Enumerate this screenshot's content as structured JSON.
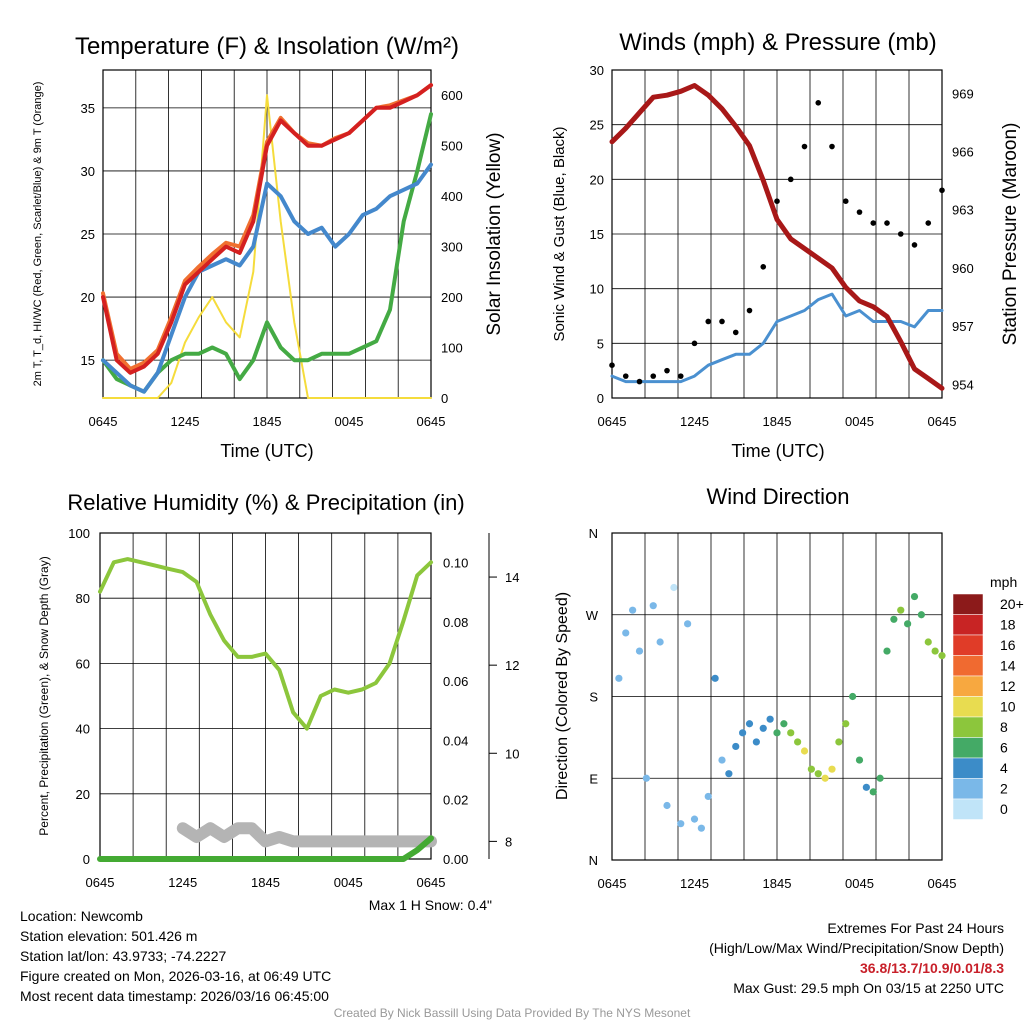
{
  "colors": {
    "temp_red": "#d42020",
    "temp_orange": "#f07030",
    "dew_green": "#44aa44",
    "chill_blue": "#4488cc",
    "solar_yellow": "#f5dc3c",
    "wind_blue": "#4a90d0",
    "gust_black": "#000000",
    "pressure_maroon": "#a81818",
    "rh_green": "#8cc63c",
    "precip_green": "#44aa33",
    "snow_gray": "#b4b4b4",
    "extreme_red": "#c8202a"
  },
  "chart_data": [
    {
      "type": "line",
      "title": "Temperature (F) & Insolation (W/m²)",
      "xlabel": "Time (UTC)",
      "ylabel": "2m T, T_d, HI/WC (Red, Green, Scarlet/Blue) & 9m T (Orange)",
      "y2label": "Solar Insolation (Yellow)",
      "xticks": [
        "0645",
        "1245",
        "1845",
        "0045",
        "0645"
      ],
      "ylim": [
        12,
        38
      ],
      "yticks": [
        15,
        20,
        25,
        30,
        35
      ],
      "y2lim": [
        0,
        650
      ],
      "y2ticks": [
        0,
        100,
        200,
        300,
        400,
        500,
        600
      ],
      "x": [
        0,
        1,
        2,
        3,
        4,
        5,
        6,
        7,
        8,
        9,
        10,
        11,
        12,
        13,
        14,
        15,
        16,
        17,
        18,
        19,
        20,
        21,
        22,
        23,
        24
      ],
      "series": [
        {
          "name": "2m T",
          "axis": "left",
          "values": [
            20,
            15,
            14,
            14.5,
            15.5,
            18,
            21,
            22,
            23,
            24,
            23.5,
            26,
            32,
            34,
            33,
            32,
            32,
            32.5,
            33,
            34,
            35,
            35,
            35.5,
            36,
            36.8
          ]
        },
        {
          "name": "9m T",
          "axis": "left",
          "values": [
            20.3,
            15.5,
            14.3,
            14.8,
            15.8,
            18.4,
            21.3,
            22.4,
            23.4,
            24.3,
            24,
            26.5,
            32.3,
            34.2,
            33,
            32.2,
            32,
            32.6,
            33,
            34,
            35,
            35.2,
            35.6,
            36,
            36.8
          ]
        },
        {
          "name": "HI/WC",
          "axis": "left",
          "values": [
            15,
            14,
            13,
            12.5,
            14,
            17,
            20,
            22,
            22.5,
            23,
            22.5,
            24,
            29,
            28,
            26,
            25,
            25.5,
            24,
            25,
            26.5,
            27,
            28,
            28.5,
            29,
            30.5
          ]
        },
        {
          "name": "Dew point",
          "axis": "left",
          "values": [
            15,
            13.5,
            13,
            12.5,
            14,
            15,
            15.5,
            15.5,
            16,
            15.5,
            13.5,
            15,
            18,
            16,
            15,
            15,
            15.5,
            15.5,
            15.5,
            16,
            16.5,
            19,
            26,
            30,
            34.5
          ]
        },
        {
          "name": "Solar",
          "axis": "right",
          "values": [
            0,
            0,
            0,
            0,
            0,
            30,
            110,
            160,
            200,
            150,
            120,
            250,
            600,
            350,
            150,
            0,
            0,
            0,
            0,
            0,
            0,
            0,
            0,
            0,
            0
          ]
        }
      ]
    },
    {
      "type": "line",
      "title": "Winds (mph) & Pressure (mb)",
      "xlabel": "Time (UTC)",
      "ylabel": "Sonic Wind & Gust (Blue, Black)",
      "y2label": "Station Pressure (Maroon)",
      "xticks": [
        "0645",
        "1245",
        "1845",
        "0045",
        "0645"
      ],
      "ylim": [
        0,
        30
      ],
      "yticks": [
        0,
        5,
        10,
        15,
        20,
        25,
        30
      ],
      "y2lim": [
        953.3,
        970.2
      ],
      "y2ticks": [
        954,
        957,
        960,
        963,
        966,
        969
      ],
      "x": [
        0,
        1,
        2,
        3,
        4,
        5,
        6,
        7,
        8,
        9,
        10,
        11,
        12,
        13,
        14,
        15,
        16,
        17,
        18,
        19,
        20,
        21,
        22,
        23,
        24
      ],
      "series": [
        {
          "name": "Sonic wind",
          "axis": "left",
          "values": [
            2,
            1.5,
            1.5,
            1.5,
            1.5,
            1.5,
            2,
            3,
            3.5,
            4,
            4,
            5,
            7,
            7.5,
            8,
            9,
            9.5,
            7.5,
            8,
            7,
            7,
            7,
            6.5,
            8,
            8
          ]
        },
        {
          "name": "Gust",
          "axis": "left",
          "values": [
            3,
            2,
            1.5,
            2,
            2.5,
            2,
            5,
            7,
            7,
            6,
            8,
            12,
            18,
            20,
            23,
            27,
            23,
            18,
            17,
            16,
            16,
            15,
            14,
            16,
            19
          ]
        },
        {
          "name": "Pressure",
          "axis": "right",
          "values": [
            966.5,
            967.2,
            968,
            968.8,
            968.9,
            969.1,
            969.4,
            968.9,
            968.2,
            967.3,
            966.3,
            964.5,
            962.5,
            961.5,
            961,
            960.5,
            960,
            959,
            958.3,
            958,
            957.5,
            956.2,
            954.8,
            954.3,
            953.8
          ]
        }
      ]
    },
    {
      "type": "line",
      "title": "Relative Humidity (%) & Precipitation (in)",
      "ylabel": "Percent, Precipitation (Green), & Snow Depth (Gray)",
      "xticks": [
        "0645",
        "1245",
        "1845",
        "0045",
        "0645"
      ],
      "ylim": [
        0,
        100
      ],
      "yticks": [
        0,
        20,
        40,
        60,
        80,
        100
      ],
      "y2lim": [
        0,
        0.11
      ],
      "y2ticks": [
        "0.00",
        "0.02",
        "0.04",
        "0.06",
        "0.08",
        "0.10"
      ],
      "y3lim": [
        7.6,
        15
      ],
      "y3ticks": [
        8,
        10,
        12,
        14
      ],
      "x": [
        0,
        1,
        2,
        3,
        4,
        5,
        6,
        7,
        8,
        9,
        10,
        11,
        12,
        13,
        14,
        15,
        16,
        17,
        18,
        19,
        20,
        21,
        22,
        23,
        24
      ],
      "series": [
        {
          "name": "Relative humidity",
          "axis": "left",
          "values": [
            82,
            91,
            92,
            91,
            90,
            89,
            88,
            85,
            75,
            67,
            62,
            62,
            63,
            58,
            45,
            40,
            50,
            52,
            51,
            52,
            54,
            60,
            73,
            87,
            91
          ]
        },
        {
          "name": "Precipitation",
          "axis": "y2",
          "values": [
            0,
            0,
            0,
            0,
            0,
            0,
            0,
            0,
            0,
            0,
            0,
            0,
            0,
            0,
            0,
            0,
            0,
            0,
            0,
            0,
            0,
            0,
            0,
            0.003,
            0.007
          ]
        },
        {
          "name": "Snow depth",
          "axis": "y3",
          "values": [
            null,
            null,
            null,
            null,
            null,
            null,
            8.3,
            8.1,
            8.3,
            8.1,
            8.3,
            8.3,
            8,
            8.1,
            8,
            8,
            8,
            8,
            8,
            8,
            8,
            8,
            8,
            8,
            8
          ]
        }
      ],
      "annotation": "Max 1 H Snow: 0.4\""
    },
    {
      "type": "scatter",
      "title": "Wind Direction",
      "ylabel": "Direction (Colored By Speed)",
      "xticks": [
        "0645",
        "1245",
        "1845",
        "0045",
        "0645"
      ],
      "ylim": [
        0,
        360
      ],
      "yticks": [
        "N",
        "E",
        "S",
        "W",
        "N"
      ],
      "legend": {
        "title": "mph",
        "labels": [
          "20+",
          "18",
          "16",
          "14",
          "12",
          "10",
          "8",
          "6",
          "4",
          "2",
          "0"
        ],
        "colors": [
          "#8c1a1a",
          "#c82424",
          "#e03c28",
          "#f06a30",
          "#f7a840",
          "#e8dc50",
          "#8cc63c",
          "#44aa66",
          "#3c8cc8",
          "#7ab8e8",
          "#c0e4f8"
        ]
      },
      "points": [
        {
          "x": 0.5,
          "dir": 200,
          "spd": 1
        },
        {
          "x": 1,
          "dir": 250,
          "spd": 1
        },
        {
          "x": 1.5,
          "dir": 275,
          "spd": 1
        },
        {
          "x": 2,
          "dir": 230,
          "spd": 2
        },
        {
          "x": 2.5,
          "dir": 90,
          "spd": 1
        },
        {
          "x": 3,
          "dir": 280,
          "spd": 1
        },
        {
          "x": 3.5,
          "dir": 240,
          "spd": 2
        },
        {
          "x": 4,
          "dir": 60,
          "spd": 1
        },
        {
          "x": 4.5,
          "dir": 300,
          "spd": 0
        },
        {
          "x": 5,
          "dir": 40,
          "spd": 1
        },
        {
          "x": 5.5,
          "dir": 260,
          "spd": 2
        },
        {
          "x": 6,
          "dir": 45,
          "spd": 1
        },
        {
          "x": 6.5,
          "dir": 35,
          "spd": 2
        },
        {
          "x": 7,
          "dir": 70,
          "spd": 2
        },
        {
          "x": 7.5,
          "dir": 200,
          "spd": 3
        },
        {
          "x": 8,
          "dir": 110,
          "spd": 2
        },
        {
          "x": 8.5,
          "dir": 95,
          "spd": 3
        },
        {
          "x": 9,
          "dir": 125,
          "spd": 3
        },
        {
          "x": 9.5,
          "dir": 140,
          "spd": 3
        },
        {
          "x": 10,
          "dir": 150,
          "spd": 4
        },
        {
          "x": 10.5,
          "dir": 130,
          "spd": 4
        },
        {
          "x": 11,
          "dir": 145,
          "spd": 4
        },
        {
          "x": 11.5,
          "dir": 155,
          "spd": 4
        },
        {
          "x": 12,
          "dir": 140,
          "spd": 5
        },
        {
          "x": 12.5,
          "dir": 150,
          "spd": 6
        },
        {
          "x": 13,
          "dir": 140,
          "spd": 7
        },
        {
          "x": 13.5,
          "dir": 130,
          "spd": 8
        },
        {
          "x": 14,
          "dir": 120,
          "spd": 9
        },
        {
          "x": 14.5,
          "dir": 100,
          "spd": 8
        },
        {
          "x": 15,
          "dir": 95,
          "spd": 7
        },
        {
          "x": 15.5,
          "dir": 90,
          "spd": 10
        },
        {
          "x": 16,
          "dir": 100,
          "spd": 9
        },
        {
          "x": 16.5,
          "dir": 130,
          "spd": 8
        },
        {
          "x": 17,
          "dir": 150,
          "spd": 7
        },
        {
          "x": 17.5,
          "dir": 180,
          "spd": 6
        },
        {
          "x": 18,
          "dir": 110,
          "spd": 5
        },
        {
          "x": 18.5,
          "dir": 80,
          "spd": 4
        },
        {
          "x": 19,
          "dir": 75,
          "spd": 5
        },
        {
          "x": 19.5,
          "dir": 90,
          "spd": 6
        },
        {
          "x": 20,
          "dir": 230,
          "spd": 6
        },
        {
          "x": 20.5,
          "dir": 265,
          "spd": 5
        },
        {
          "x": 21,
          "dir": 275,
          "spd": 7
        },
        {
          "x": 21.5,
          "dir": 260,
          "spd": 6
        },
        {
          "x": 22,
          "dir": 290,
          "spd": 5
        },
        {
          "x": 22.5,
          "dir": 270,
          "spd": 6
        },
        {
          "x": 23,
          "dir": 240,
          "spd": 7
        },
        {
          "x": 23.5,
          "dir": 230,
          "spd": 8
        },
        {
          "x": 24,
          "dir": 225,
          "spd": 8
        }
      ]
    }
  ],
  "footer": {
    "location": "Location: Newcomb",
    "elevation": "Station elevation: 501.426 m",
    "latlon": "Station lat/lon: 43.9733; -74.2227",
    "created": "Figure created on Mon, 2026-03-16, at 06:49 UTC",
    "recent": "Most recent data timestamp: 2026/03/16 06:45:00",
    "extremes_title": "Extremes For Past 24 Hours",
    "extremes_sub": "(High/Low/Max Wind/Precipitation/Snow Depth)",
    "extremes_values": "36.8/13.7/10.9/0.01/8.3",
    "max_gust": "Max Gust: 29.5 mph On 03/15 at 2250 UTC",
    "credit": "Created By Nick Bassill Using Data Provided By The NYS Mesonet"
  }
}
